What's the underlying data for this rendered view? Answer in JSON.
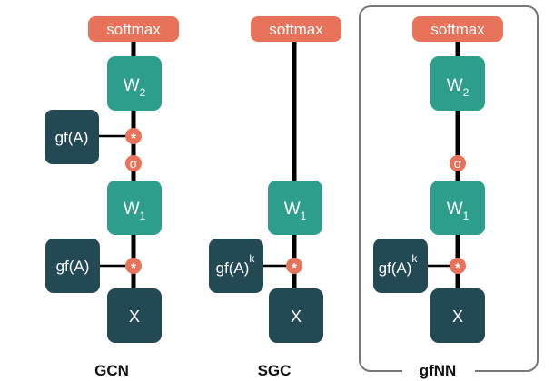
{
  "colors": {
    "softmax": "#e8735a",
    "weight": "#2e9e8c",
    "dark": "#234955",
    "line": "#000000",
    "frame": "#777777",
    "white": "#ffffff"
  },
  "symbols": {
    "multiply": "*",
    "sigma": "σ"
  },
  "columns": [
    {
      "name": "GCN",
      "softmax": "softmax",
      "w2": {
        "base": "W",
        "sub": "2"
      },
      "gf_top": "gf(A)",
      "w1": {
        "base": "W",
        "sub": "1"
      },
      "gf_bottom": "gf(A)",
      "x": "X"
    },
    {
      "name": "SGC",
      "softmax": "softmax",
      "w1": {
        "base": "W",
        "sub": "1"
      },
      "gf": {
        "base": "gf(A)",
        "sup": "k"
      },
      "x": "X"
    },
    {
      "name": "gfNN",
      "softmax": "softmax",
      "w2": {
        "base": "W",
        "sub": "2"
      },
      "w1": {
        "base": "W",
        "sub": "1"
      },
      "gf": {
        "base": "gf(A)",
        "sup": "k"
      },
      "x": "X"
    }
  ]
}
